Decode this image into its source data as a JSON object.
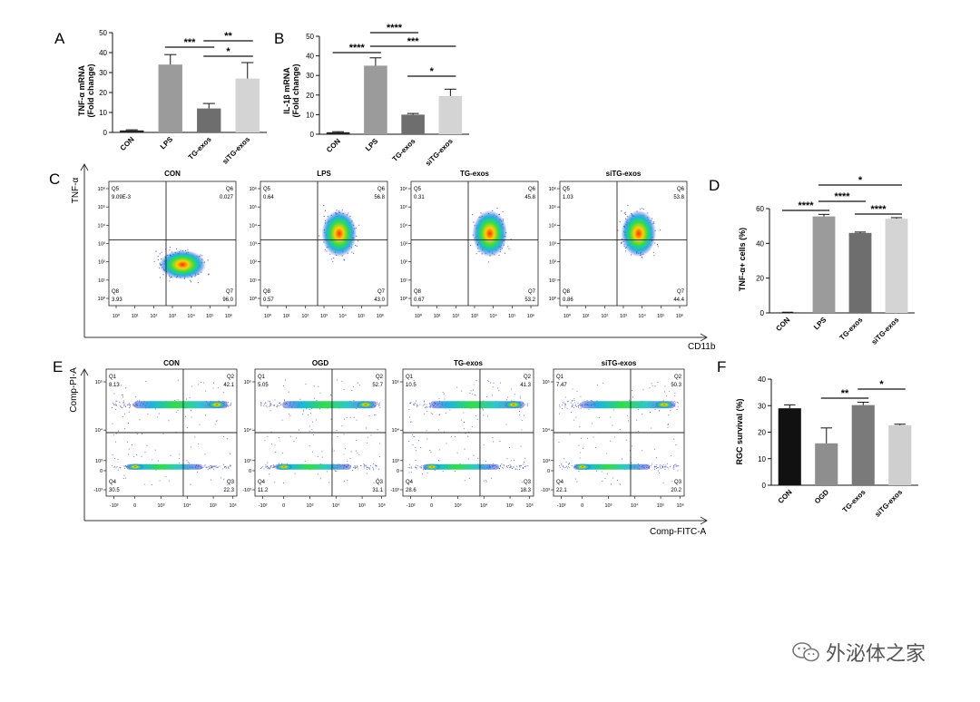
{
  "panels": {
    "A": {
      "letter": "A",
      "ylabel": "TNF-α mRNA",
      "ylabel2": "(Fold change)"
    },
    "B": {
      "letter": "B",
      "ylabel": "IL-1β mRNA",
      "ylabel2": "(Fold change)"
    },
    "C": {
      "letter": "C",
      "yaxis": "TNF-α",
      "xaxis": "CD11b",
      "xticks": [
        "10⁰",
        "10¹",
        "10²",
        "10³",
        "10⁴",
        "10⁵",
        "10⁶"
      ],
      "yticks": [
        "10⁶",
        "10⁵",
        "10⁴",
        "10³",
        "10²",
        "10¹",
        "10⁰"
      ]
    },
    "D": {
      "letter": "D",
      "ylabel": "TNF-α+ cells (%)"
    },
    "E": {
      "letter": "E",
      "yaxis": "Comp-PI-A",
      "xaxis": "Comp-FITC-A",
      "xticks": [
        "-10³",
        "0",
        "10³",
        "10⁴",
        "10⁵",
        "10⁶"
      ],
      "yticks": [
        "10⁵",
        "10⁴",
        "10³",
        "0",
        "-10³"
      ]
    },
    "F": {
      "letter": "F",
      "ylabel": "RGC survival (%)"
    }
  },
  "chart_data": [
    {
      "panel": "A",
      "type": "bar",
      "categories": [
        "CON",
        "LPS",
        "TG-exos",
        "siTG-exos"
      ],
      "values": [
        1,
        34,
        12,
        27
      ],
      "errors": [
        0.3,
        5,
        2.5,
        8
      ],
      "colors": [
        "#222222",
        "#9b9b9b",
        "#6e6e6e",
        "#d4d4d4"
      ],
      "ylim": [
        0,
        50
      ],
      "yticks": [
        "0",
        "10",
        "20",
        "30",
        "40",
        "50"
      ],
      "significance": [
        {
          "from": 1,
          "to": 2,
          "label": "***"
        },
        {
          "from": 2,
          "to": 3,
          "label": "**"
        },
        {
          "from": 2,
          "to": 3,
          "label": "*",
          "level": 2
        }
      ]
    },
    {
      "panel": "B",
      "type": "bar",
      "categories": [
        "CON",
        "LPS",
        "TG-exos",
        "siTG-exos"
      ],
      "values": [
        1,
        35,
        10,
        19.5
      ],
      "errors": [
        0.3,
        4,
        0.6,
        3.5
      ],
      "colors": [
        "#222222",
        "#9b9b9b",
        "#6e6e6e",
        "#d4d4d4"
      ],
      "ylim": [
        0,
        50
      ],
      "yticks": [
        "0",
        "10",
        "20",
        "30",
        "40",
        "50"
      ],
      "significance": [
        {
          "label": "****",
          "from": 0,
          "to": 1
        },
        {
          "label": "****",
          "from": 1,
          "to": 2
        },
        {
          "label": "***",
          "from": 1,
          "to": 3
        },
        {
          "label": "*",
          "from": 2,
          "to": 3
        }
      ]
    },
    {
      "panel": "D",
      "type": "bar",
      "categories": [
        "CON",
        "LPS",
        "TG-exos",
        "siTG-exos"
      ],
      "values": [
        0.3,
        55.5,
        46,
        54.2
      ],
      "errors": [
        0.1,
        1.2,
        0.5,
        0.6
      ],
      "colors": [
        "#222222",
        "#9b9b9b",
        "#6e6e6e",
        "#d4d4d4"
      ],
      "ylim": [
        0,
        60
      ],
      "yticks": [
        "0",
        "20",
        "40",
        "60"
      ],
      "significance": [
        {
          "label": "*",
          "from": 1,
          "to": 3
        },
        {
          "label": "****",
          "from": 0,
          "to": 1
        },
        {
          "label": "****",
          "from": 1,
          "to": 2
        },
        {
          "label": "****",
          "from": 2,
          "to": 3
        }
      ]
    },
    {
      "panel": "F",
      "type": "bar",
      "categories": [
        "CON",
        "OGD",
        "TG-exos",
        "siTG-exos"
      ],
      "values": [
        29,
        15.8,
        30.2,
        22.6
      ],
      "errors": [
        1.3,
        5.8,
        1.1,
        0.4
      ],
      "colors": [
        "#111111",
        "#8e8e8e",
        "#7a7a7a",
        "#cfcfcf"
      ],
      "ylim": [
        0,
        40
      ],
      "yticks": [
        "0",
        "10",
        "20",
        "30",
        "40"
      ],
      "significance": [
        {
          "label": "**",
          "from": 1,
          "to": 2
        },
        {
          "label": "*",
          "from": 2,
          "to": 3
        }
      ]
    }
  ],
  "flow_c": [
    {
      "title": "CON",
      "q5": "9.09E-3",
      "q6": "0.027",
      "q8": "3.93",
      "q7": "96.0"
    },
    {
      "title": "LPS",
      "q5": "0.64",
      "q6": "56.8",
      "q8": "0.57",
      "q7": "43.0"
    },
    {
      "title": "TG-exos",
      "q5": "0.31",
      "q6": "45.8",
      "q8": "0.67",
      "q7": "53.2"
    },
    {
      "title": "siTG-exos",
      "q5": "1.03",
      "q6": "53.8",
      "q8": "0.86",
      "q7": "44.4"
    }
  ],
  "flow_c_labels": {
    "tl": "Q5",
    "tr": "Q6",
    "bl": "Q8",
    "br": "Q7"
  },
  "flow_e": [
    {
      "title": "CON",
      "q1": "8.13",
      "q2": "42.1",
      "q4": "30.5",
      "q3": "22.3"
    },
    {
      "title": "OGD",
      "q1": "5.05",
      "q2": "52.7",
      "q4": "11.2",
      "q3": "31.1"
    },
    {
      "title": "TG-exos",
      "q1": "10.5",
      "q2": "41.3",
      "q4": "28.6",
      "q3": "18.3"
    },
    {
      "title": "siTG-exos",
      "q1": "7.47",
      "q2": "50.3",
      "q4": "22.1",
      "q3": "20.2"
    }
  ],
  "flow_e_labels": {
    "tl": "Q1",
    "tr": "Q2",
    "bl": "Q4",
    "br": "Q3"
  },
  "watermark": {
    "text": "外泌体之家",
    "icon": "wechat-icon"
  }
}
